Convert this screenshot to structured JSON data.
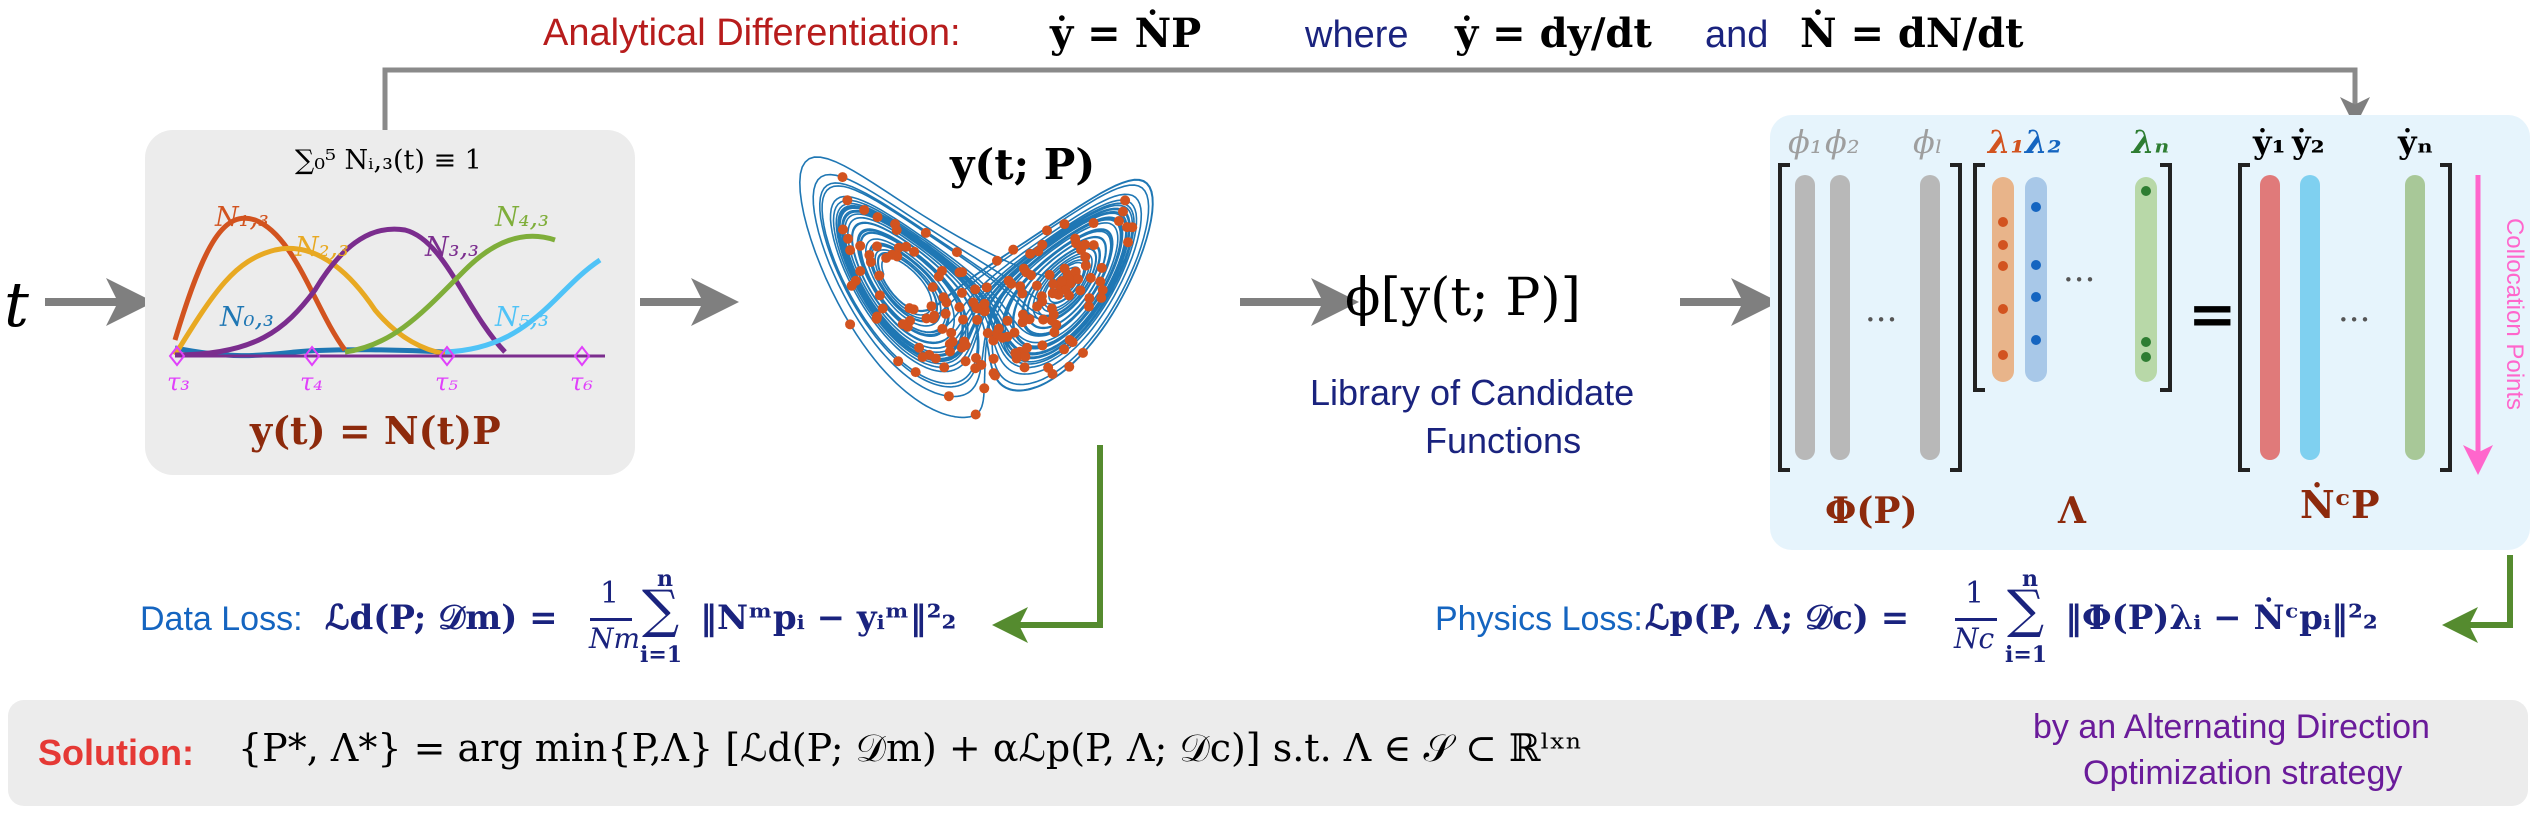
{
  "top": {
    "title": "Analytical Differentiation:",
    "eq1": "ẏ = ṄP",
    "where": "where",
    "eq2": "ẏ = dy/dt",
    "and": "and",
    "eq3": "Ṅ = dN/dt"
  },
  "input_symbol": "t",
  "spline": {
    "partition": "∑₀⁵ Nᵢ,₃(t) ≡ 1",
    "curves": [
      "N₁,₃",
      "N₂,₃",
      "N₃,₃",
      "N₄,₃",
      "N₀,₃",
      "N₅,₃"
    ],
    "knots": [
      "τ₃",
      "τ₄",
      "τ₅",
      "τ₆"
    ],
    "eq": "y(t) = N(t)P",
    "colors": {
      "N0": "#1f77b4",
      "N1": "#d2531f",
      "N2": "#e8a922",
      "N3": "#7b2d8e",
      "N4": "#7fae3a",
      "N5": "#4fc3f7",
      "knot": "#e040fb"
    }
  },
  "attractor_label": "y(t; P)",
  "library": {
    "phi": "ϕ[y(t; P)]",
    "caption_line1": "Library of Candidate",
    "caption_line2": "Functions"
  },
  "matrix": {
    "phi_heads": [
      "ϕ₁",
      "ϕ₂",
      "ϕₗ"
    ],
    "lambda_heads": [
      "λ₁",
      "λ₂",
      "λₙ"
    ],
    "ydot_heads": [
      "ẏ₁",
      "ẏ₂",
      "ẏₙ"
    ],
    "dots": "···",
    "equals": "=",
    "phi_label": "Φ(P)",
    "lambda_label": "Λ",
    "ndot_label": "ṄᶜP",
    "collocation": "Collocation Points"
  },
  "data_loss": {
    "label": "Data Loss:",
    "lhs": "ℒd(P; 𝒟m) =",
    "frac_num": "1",
    "frac_den": "Nm",
    "sum_top": "n",
    "sum_bottom": "i=1",
    "body": "‖Nᵐpᵢ − yᵢᵐ‖²₂"
  },
  "physics_loss": {
    "label": "Physics Loss:",
    "lhs": "ℒp(P, Λ; 𝒟c) =",
    "frac_num": "1",
    "frac_den": "Nc",
    "sum_top": "n",
    "sum_bottom": "i=1",
    "body": "‖Φ(P)λᵢ − Ṅᶜpᵢ‖²₂"
  },
  "solution": {
    "label": "Solution:",
    "eq": "{P*, Λ*} = arg min{P,Λ} [ℒd(P; 𝒟m) + αℒp(P, Λ; 𝒟c)]   s.t.   Λ ∈ 𝒮 ⊂ ℝˡˣⁿ",
    "strategy_line1": "by an Alternating Direction",
    "strategy_line2": "Optimization strategy"
  }
}
